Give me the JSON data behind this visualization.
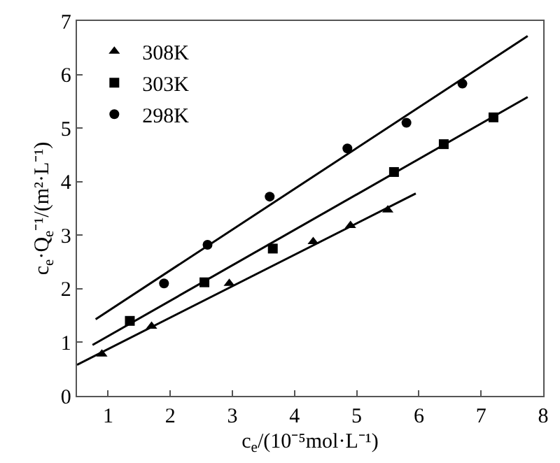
{
  "chart_data": {
    "type": "scatter",
    "xlabel": "c$_{e}$/(10⁻⁵mol·L⁻¹)",
    "ylabel": "c$_{e}$·Q$_{e}$⁻¹/(m²·L⁻¹)",
    "xlim": [
      0.5,
      8
    ],
    "xticks": [
      1,
      2,
      3,
      4,
      5,
      6,
      7,
      8
    ],
    "ylim": [
      0,
      7
    ],
    "yticks": [
      0,
      1,
      2,
      3,
      4,
      5,
      6,
      7
    ],
    "legend": "top left",
    "series": [
      {
        "name": "308K",
        "marker": "triangle",
        "color": "#000000",
        "x": [
          0.9,
          1.7,
          2.95,
          4.3,
          4.9,
          5.5
        ],
        "values": [
          0.78,
          1.3,
          2.1,
          2.88,
          3.18,
          3.47
        ]
      },
      {
        "name": "303K",
        "marker": "square",
        "color": "#000000",
        "x": [
          1.35,
          2.55,
          3.65,
          5.6,
          6.4,
          7.2
        ],
        "values": [
          1.4,
          2.12,
          2.75,
          4.18,
          4.7,
          5.2
        ]
      },
      {
        "name": "298K",
        "marker": "circle",
        "color": "#000000",
        "x": [
          1.9,
          2.6,
          3.6,
          4.85,
          5.8,
          6.7
        ],
        "values": [
          2.1,
          2.82,
          3.72,
          4.62,
          5.1,
          5.83
        ]
      },
      {
        "type": "line",
        "color": "#000000",
        "line_style": "solid",
        "x": [
          0.5,
          5.95
        ],
        "values": [
          0.58,
          3.78
        ]
      },
      {
        "type": "line",
        "color": "#000000",
        "line_style": "solid",
        "x": [
          0.75,
          7.75
        ],
        "values": [
          0.95,
          5.58
        ]
      },
      {
        "type": "line",
        "color": "#000000",
        "line_style": "solid",
        "x": [
          0.8,
          7.75
        ],
        "values": [
          1.43,
          6.72
        ]
      }
    ]
  }
}
